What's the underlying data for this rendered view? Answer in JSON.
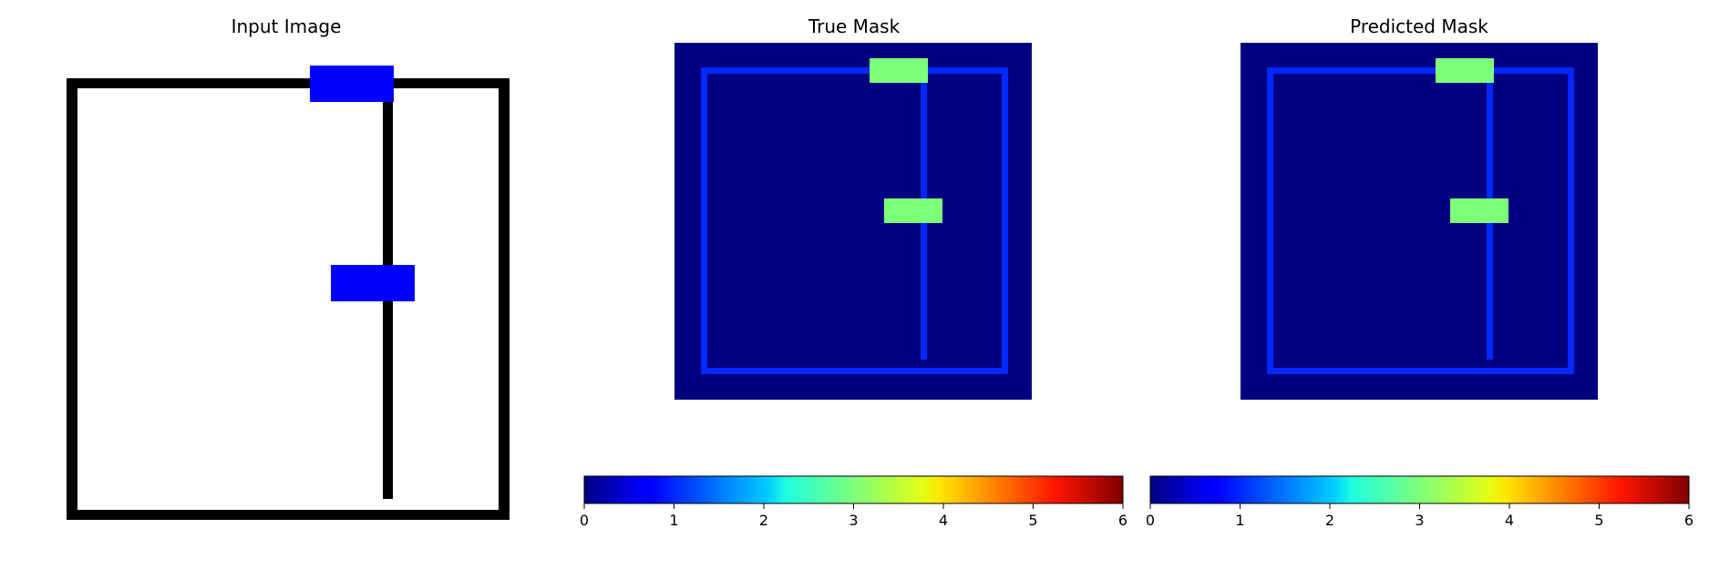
{
  "panels": {
    "input": {
      "title": "Input Image"
    },
    "true_mask": {
      "title": "True Mask"
    },
    "predicted_mask": {
      "title": "Predicted Mask"
    }
  },
  "colormap": "jet",
  "colorbars": [
    {
      "name": "true-mask-colorbar",
      "ticks": [
        "0",
        "1",
        "2",
        "3",
        "4",
        "5",
        "6"
      ],
      "range": [
        0,
        6
      ]
    },
    {
      "name": "predicted-mask-colorbar",
      "ticks": [
        "0",
        "1",
        "2",
        "3",
        "4",
        "5",
        "6"
      ],
      "range": [
        0,
        6
      ]
    }
  ],
  "colors": {
    "background_class": "#000080",
    "line_class": "#0028ff",
    "box_class": "#7dff7a",
    "input_line": "#000000",
    "input_box": "#0000ff"
  }
}
